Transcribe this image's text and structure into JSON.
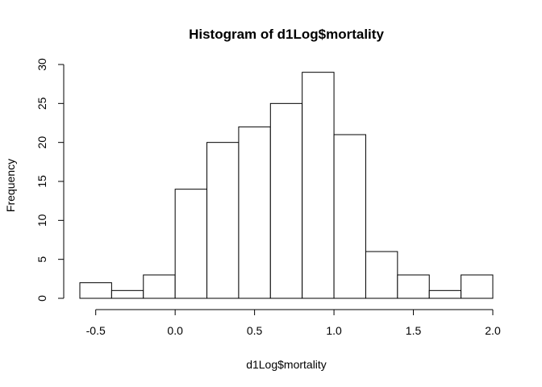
{
  "chart_data": {
    "type": "bar",
    "title": "Histogram of d1Log$mortality",
    "xlabel": "d1Log$mortality",
    "ylabel": "Frequency",
    "bins": [
      {
        "start": -0.6,
        "end": -0.4,
        "count": 2
      },
      {
        "start": -0.4,
        "end": -0.2,
        "count": 1
      },
      {
        "start": -0.2,
        "end": 0.0,
        "count": 3
      },
      {
        "start": 0.0,
        "end": 0.2,
        "count": 14
      },
      {
        "start": 0.2,
        "end": 0.4,
        "count": 20
      },
      {
        "start": 0.4,
        "end": 0.6,
        "count": 22
      },
      {
        "start": 0.6,
        "end": 0.8,
        "count": 25
      },
      {
        "start": 0.8,
        "end": 1.0,
        "count": 29
      },
      {
        "start": 1.0,
        "end": 1.2,
        "count": 21
      },
      {
        "start": 1.2,
        "end": 1.4,
        "count": 6
      },
      {
        "start": 1.4,
        "end": 1.6,
        "count": 3
      },
      {
        "start": 1.6,
        "end": 1.8,
        "count": 1
      },
      {
        "start": 1.8,
        "end": 2.0,
        "count": 3
      }
    ],
    "xticks": [
      "-0.5",
      "0.0",
      "0.5",
      "1.0",
      "1.5",
      "2.0"
    ],
    "yticks": [
      "0",
      "5",
      "10",
      "15",
      "20",
      "25",
      "30"
    ],
    "xlim": [
      -0.6,
      2.0
    ],
    "ylim": [
      0,
      30
    ],
    "grid": false,
    "bar_fill": "#ffffff",
    "bar_stroke": "#000000"
  }
}
